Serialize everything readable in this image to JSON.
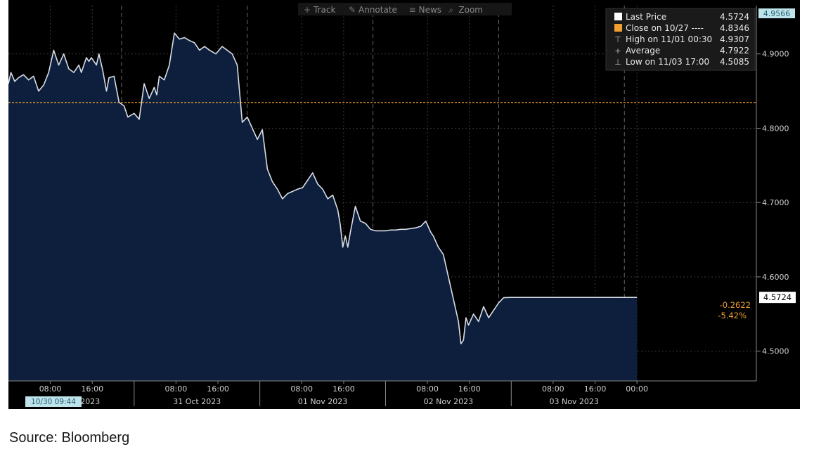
{
  "toolbar": [
    {
      "icon": "crosshair-icon",
      "label": "Track"
    },
    {
      "icon": "pencil-icon",
      "label": "Annotate"
    },
    {
      "icon": "news-icon",
      "label": "News"
    },
    {
      "icon": "magnifier-icon",
      "label": "Zoom"
    }
  ],
  "top_right_value": "4.9566",
  "legend": [
    {
      "marker": "square",
      "color": "#ffffff",
      "label": "Last Price",
      "value": "4.5724"
    },
    {
      "marker": "square",
      "color": "#f0a030",
      "label": "Close on 10/27 ----",
      "value": "4.8346"
    },
    {
      "marker": "glyph",
      "glyph": "⊤",
      "color": "#bbbbbb",
      "label": "High on 11/01 00:30",
      "value": "4.9307"
    },
    {
      "marker": "glyph",
      "glyph": "+",
      "color": "#bbbbbb",
      "label": "Average",
      "value": "4.7922"
    },
    {
      "marker": "glyph",
      "glyph": "⊥",
      "color": "#bbbbbb",
      "label": "Low on 11/03 17:00",
      "value": "4.5085"
    }
  ],
  "last_price_tag": "4.5724",
  "change_abs": "-0.2622",
  "change_pct": "-5.42%",
  "start_stamp": "10/30 09:44",
  "source_text": "Source: Bloomberg",
  "colors": {
    "background": "#000000",
    "area_fill": "#0d1f3d",
    "line": "#d8dde6",
    "close_ref": "#f0a030",
    "axis_text": "#d0d0d0",
    "change_text": "#f0a030",
    "badge": "#bfe3ea"
  },
  "chart_data": {
    "type": "area",
    "title": "",
    "xlabel": "",
    "ylabel": "",
    "y_ticks": [
      {
        "value": 4.9,
        "label": "4.9000"
      },
      {
        "value": 4.8,
        "label": "4.8000"
      },
      {
        "value": 4.7,
        "label": "4.7000"
      },
      {
        "value": 4.6,
        "label": "4.6000"
      },
      {
        "value": 4.5,
        "label": "4.5000"
      }
    ],
    "ylim": [
      4.46,
      4.965
    ],
    "xlim": [
      0,
      5.95
    ],
    "x_unit": "days since 30 Oct 2023 00:00",
    "x_ticks": [
      {
        "x": 0.333,
        "label": "08:00"
      },
      {
        "x": 0.667,
        "label": "16:00"
      },
      {
        "x": 1.333,
        "label": "08:00"
      },
      {
        "x": 1.667,
        "label": "16:00"
      },
      {
        "x": 2.333,
        "label": "08:00"
      },
      {
        "x": 2.667,
        "label": "16:00"
      },
      {
        "x": 3.333,
        "label": "08:00"
      },
      {
        "x": 3.667,
        "label": "16:00"
      },
      {
        "x": 4.333,
        "label": "08:00"
      },
      {
        "x": 4.667,
        "label": "16:00"
      },
      {
        "x": 5.0,
        "label": "00:00"
      }
    ],
    "day_labels": [
      {
        "x": 0.65,
        "label": "2023"
      },
      {
        "x": 1.5,
        "label": "31 Oct 2023"
      },
      {
        "x": 2.5,
        "label": "01 Nov 2023"
      },
      {
        "x": 3.5,
        "label": "02 Nov 2023"
      },
      {
        "x": 4.5,
        "label": "03 Nov 2023"
      }
    ],
    "day_separators": [
      1.0,
      2.0,
      3.0,
      4.0
    ],
    "dashed_lines": [
      0.9,
      1.9,
      2.9,
      3.9,
      4.9
    ],
    "reference_lines": [
      {
        "name": "Close on 10/27",
        "value": 4.8346
      }
    ],
    "series": [
      {
        "name": "Last Price",
        "x": [
          0,
          0.02,
          0.05,
          0.08,
          0.12,
          0.16,
          0.2,
          0.24,
          0.28,
          0.32,
          0.36,
          0.4,
          0.44,
          0.48,
          0.52,
          0.56,
          0.58,
          0.62,
          0.64,
          0.66,
          0.7,
          0.72,
          0.75,
          0.78,
          0.8,
          0.84,
          0.88,
          0.92,
          0.95,
          1.0,
          1.04,
          1.08,
          1.12,
          1.16,
          1.18,
          1.2,
          1.24,
          1.28,
          1.32,
          1.36,
          1.4,
          1.44,
          1.48,
          1.52,
          1.56,
          1.6,
          1.65,
          1.7,
          1.74,
          1.78,
          1.82,
          1.86,
          1.9,
          1.94,
          1.98,
          2.02,
          2.06,
          2.1,
          2.14,
          2.18,
          2.22,
          2.26,
          2.3,
          2.34,
          2.38,
          2.42,
          2.46,
          2.5,
          2.54,
          2.58,
          2.62,
          2.64,
          2.66,
          2.68,
          2.7,
          2.72,
          2.76,
          2.8,
          2.84,
          2.88,
          2.92,
          2.96,
          3.0,
          3.04,
          3.08,
          3.12,
          3.16,
          3.2,
          3.24,
          3.28,
          3.32,
          3.36,
          3.38,
          3.42,
          3.46,
          3.5,
          3.54,
          3.58,
          3.6,
          3.62,
          3.64,
          3.66,
          3.7,
          3.74,
          3.78,
          3.82,
          3.86,
          3.9,
          3.94,
          4.0,
          4.1,
          4.2,
          4.3,
          4.4,
          4.46,
          4.5,
          4.54,
          4.58,
          4.6,
          4.62,
          4.64,
          4.66,
          4.68,
          4.7,
          4.72,
          4.74,
          4.76,
          4.78,
          4.8,
          4.82,
          4.84,
          4.86,
          4.88,
          4.9,
          4.94,
          4.98,
          5.0
        ],
        "y": [
          4.86,
          4.875,
          4.863,
          4.868,
          4.872,
          4.865,
          4.87,
          4.85,
          4.858,
          4.875,
          4.905,
          4.885,
          4.9,
          4.88,
          4.875,
          4.885,
          4.875,
          4.895,
          4.89,
          4.895,
          4.885,
          4.9,
          4.878,
          4.85,
          4.868,
          4.87,
          4.835,
          4.83,
          4.815,
          4.82,
          4.812,
          4.86,
          4.84,
          4.855,
          4.845,
          4.87,
          4.865,
          4.885,
          4.928,
          4.92,
          4.922,
          4.918,
          4.915,
          4.905,
          4.91,
          4.905,
          4.9,
          4.91,
          4.905,
          4.9,
          4.885,
          4.808,
          4.815,
          4.8,
          4.785,
          4.798,
          4.745,
          4.728,
          4.718,
          4.705,
          4.712,
          4.715,
          4.718,
          4.72,
          4.73,
          4.74,
          4.725,
          4.718,
          4.705,
          4.71,
          4.69,
          4.67,
          4.64,
          4.655,
          4.64,
          4.66,
          4.695,
          4.675,
          4.672,
          4.664,
          4.662,
          4.662,
          4.662,
          4.663,
          4.663,
          4.664,
          4.664,
          4.665,
          4.666,
          4.668,
          4.675,
          4.66,
          4.655,
          4.64,
          4.63,
          4.6,
          4.57,
          4.54,
          4.51,
          4.515,
          4.545,
          4.535,
          4.55,
          4.54,
          4.56,
          4.545,
          4.555,
          4.565,
          4.572,
          4.5724,
          4.5724,
          4.5724,
          4.5724,
          4.5724,
          4.5724,
          4.5724,
          4.5724,
          4.5724,
          4.5724,
          4.5724,
          4.5724,
          4.5724,
          4.5724,
          4.5724,
          4.5724,
          4.5724,
          4.5724,
          4.5724,
          4.5724,
          4.5724,
          4.5724,
          4.5724,
          4.5724,
          4.5724,
          4.5724,
          4.5724,
          4.5724
        ]
      }
    ]
  }
}
